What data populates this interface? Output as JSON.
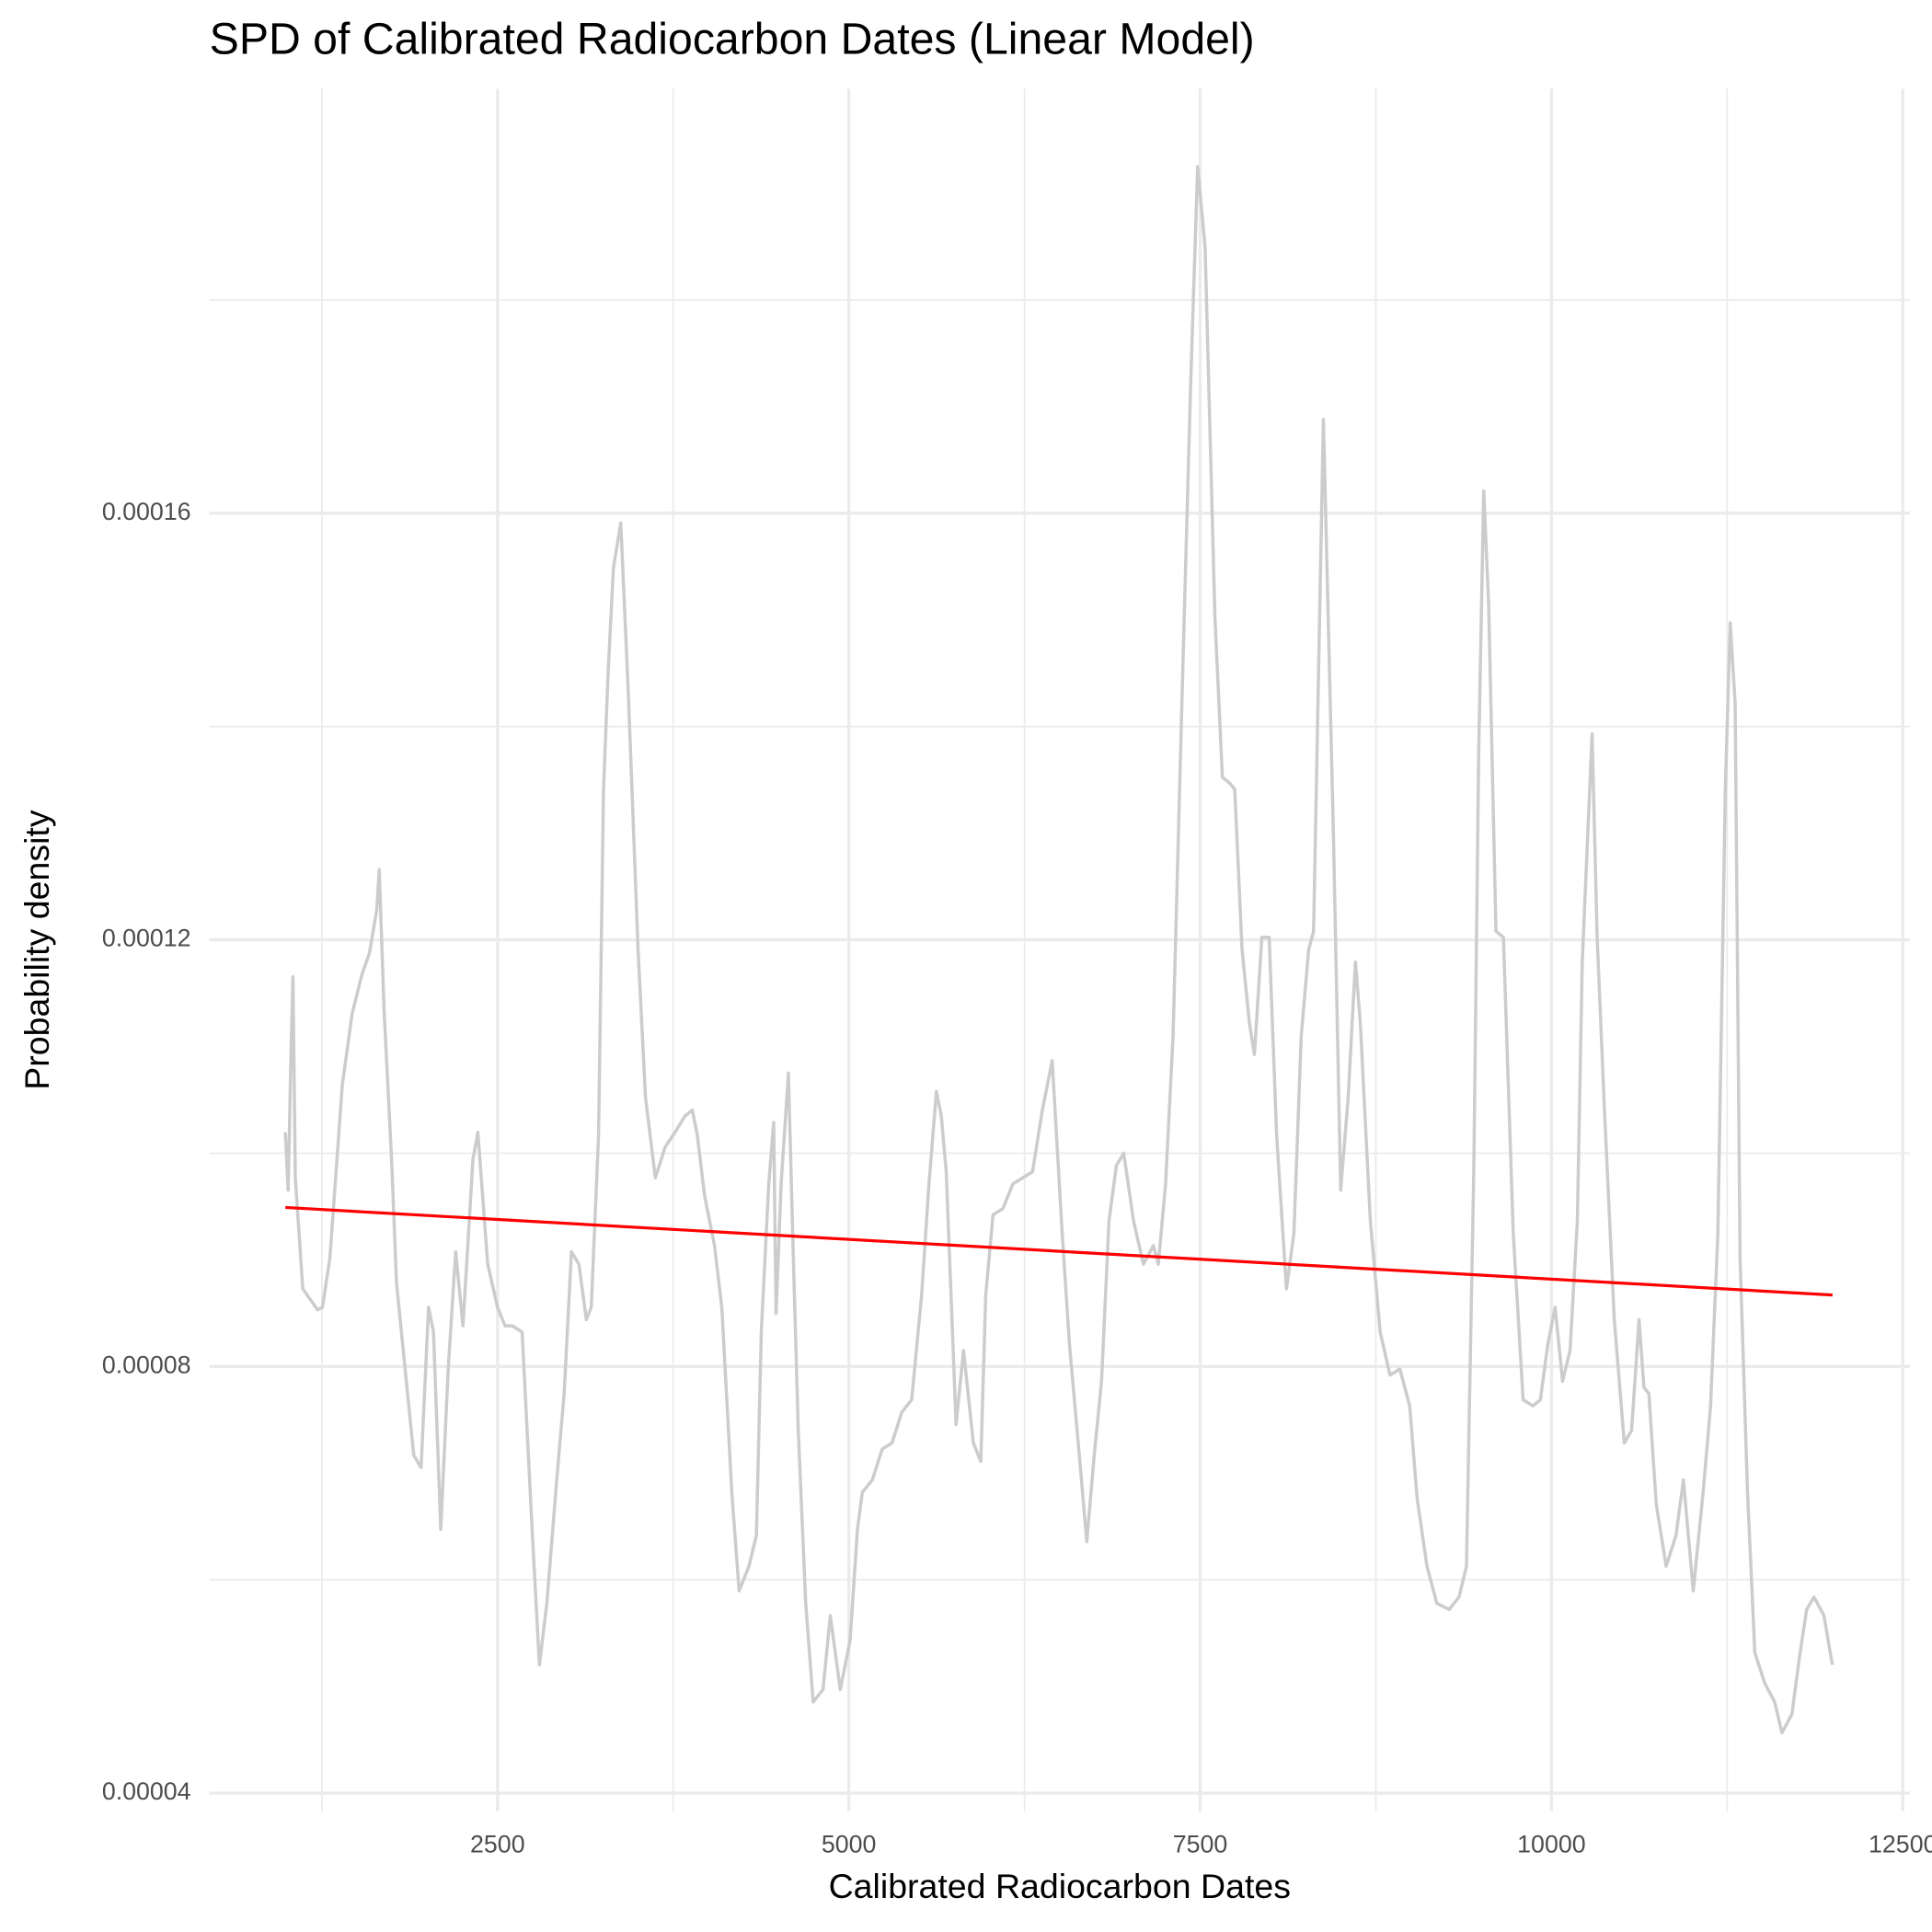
{
  "chart_data": {
    "type": "line",
    "title": "SPD of Calibrated Radiocarbon Dates (Linear Model)",
    "x_label": "Calibrated Radiocarbon Dates",
    "y_label": "Probability density",
    "xlim": [
      450,
      12550
    ],
    "ylim": [
      3.83e-05,
      0.0001998
    ],
    "xticks": [
      2500,
      5000,
      7500,
      10000,
      12500
    ],
    "yticks": [
      4e-05,
      8e-05,
      0.00012,
      0.00016
    ],
    "xminor": [
      1250,
      3750,
      6250,
      8750,
      11250
    ],
    "yminor": [
      6e-05,
      0.0001,
      0.00014,
      0.00018
    ],
    "grid": true,
    "series": [
      {
        "color": "#cccccc",
        "x": [
          990,
          1010,
          1030,
          1044,
          1061,
          1114,
          1219,
          1254,
          1307,
          1395,
          1465,
          1535,
          1588,
          1640,
          1658,
          1693,
          1746,
          1781,
          1851,
          1904,
          1956,
          2009,
          2044,
          2096,
          2149,
          2202,
          2254,
          2325,
          2360,
          2430,
          2500,
          2553,
          2605,
          2675,
          2746,
          2798,
          2851,
          2921,
          2974,
          3026,
          3079,
          3132,
          3167,
          3219,
          3254,
          3289,
          3325,
          3377,
          3430,
          3500,
          3553,
          3623,
          3693,
          3763,
          3833,
          3886,
          3921,
          3974,
          4044,
          4096,
          4167,
          4219,
          4289,
          4342,
          4377,
          4430,
          4465,
          4482,
          4518,
          4570,
          4605,
          4640,
          4693,
          4746,
          4816,
          4868,
          4939,
          5009,
          5061,
          5096,
          5167,
          5237,
          5307,
          5377,
          5447,
          5518,
          5570,
          5623,
          5658,
          5693,
          5763,
          5816,
          5886,
          5939,
          5974,
          6026,
          6096,
          6167,
          6237,
          6307,
          6377,
          6447,
          6518,
          6570,
          6640,
          6693,
          6746,
          6798,
          6851,
          6904,
          6956,
          7026,
          7096,
          7167,
          7202,
          7254,
          7307,
          7377,
          7430,
          7482,
          7535,
          7605,
          7658,
          7711,
          7746,
          7798,
          7851,
          7886,
          7939,
          7991,
          8044,
          8114,
          8167,
          8219,
          8272,
          8307,
          8377,
          8447,
          8500,
          8553,
          8605,
          8640,
          8711,
          8781,
          8851,
          8921,
          8991,
          9044,
          9114,
          9184,
          9272,
          9342,
          9395,
          9447,
          9482,
          9518,
          9553,
          9605,
          9658,
          9728,
          9798,
          9868,
          9921,
          9974,
          10026,
          10079,
          10132,
          10184,
          10219,
          10289,
          10325,
          10377,
          10447,
          10518,
          10570,
          10623,
          10658,
          10693,
          10746,
          10816,
          10886,
          10939,
          11009,
          11079,
          11132,
          11184,
          11237,
          11272,
          11307,
          11342,
          11395,
          11447,
          11518,
          11588,
          11640,
          11711,
          11763,
          11816,
          11868,
          11939,
          11991,
          12000
        ],
        "values": [
          0.00010196,
          9.653e-05,
          0.00010925,
          0.00011653,
          9.769e-05,
          8.728e-05,
          8.532e-05,
          8.555e-05,
          9.017e-05,
          0.00010636,
          0.00011306,
          0.00011676,
          0.00011873,
          0.00012277,
          0.00012659,
          0.00011329,
          9.942e-05,
          8.786e-05,
          7.861e-05,
          7.167e-05,
          7.052e-05,
          8.555e-05,
          8.323e-05,
          6.474e-05,
          7.977e-05,
          9.075e-05,
          8.381e-05,
          9.942e-05,
          0.00010196,
          8.959e-05,
          8.555e-05,
          8.381e-05,
          8.381e-05,
          8.323e-05,
          6.474e-05,
          5.202e-05,
          5.78e-05,
          6.936e-05,
          7.745e-05,
          9.075e-05,
          8.959e-05,
          8.439e-05,
          8.555e-05,
          0.00010173,
          0.0001341,
          0.00014566,
          0.00015491,
          0.00015908,
          0.00014335,
          0.00011907,
          0.0001052,
          9.769e-05,
          0.00010058,
          0.00010196,
          0.00010347,
          0.00010404,
          0.00010173,
          9.595e-05,
          9.133e-05,
          8.555e-05,
          6.821e-05,
          5.896e-05,
          6.127e-05,
          6.416e-05,
          8.323e-05,
          9.711e-05,
          0.00010289,
          8.497e-05,
          9.711e-05,
          0.00010751,
          9.017e-05,
          7.399e-05,
          5.78e-05,
          4.855e-05,
          4.971e-05,
          5.664e-05,
          4.971e-05,
          5.433e-05,
          6.474e-05,
          6.821e-05,
          6.936e-05,
          7.225e-05,
          7.283e-05,
          7.572e-05,
          7.688e-05,
          8.67e-05,
          9.711e-05,
          0.00010578,
          0.00010347,
          9.826e-05,
          7.456e-05,
          8.15e-05,
          7.283e-05,
          7.11e-05,
          8.67e-05,
          9.422e-05,
          9.48e-05,
          9.711e-05,
          9.769e-05,
          9.826e-05,
          0.00010404,
          0.00010867,
          9.248e-05,
          8.208e-05,
          7.167e-05,
          6.358e-05,
          7.167e-05,
          7.861e-05,
          9.364e-05,
          9.884e-05,
          0.0001,
          9.364e-05,
          8.959e-05,
          9.133e-05,
          8.959e-05,
          9.711e-05,
          0.00011098,
          0.00014566,
          0.0001711,
          0.00019249,
          0.00018497,
          0.00015029,
          0.00013526,
          0.00013468,
          0.0001341,
          0.00011907,
          0.00011214,
          0.00010925,
          0.00012023,
          0.00012023,
          0.00010173,
          8.728e-05,
          9.248e-05,
          0.00011098,
          0.00011907,
          0.00012081,
          0.00016879,
          0.00013064,
          9.653e-05,
          0.0001052,
          0.00011792,
          0.00011214,
          9.364e-05,
          8.323e-05,
          7.919e-05,
          7.977e-05,
          7.63e-05,
          6.763e-05,
          6.127e-05,
          5.78e-05,
          5.722e-05,
          5.838e-05,
          6.127e-05,
          9.826e-05,
          0.00013757,
          0.00016208,
          0.00015144,
          0.00012081,
          0.00012023,
          9.248e-05,
          7.688e-05,
          7.63e-05,
          7.688e-05,
          8.208e-05,
          8.555e-05,
          7.861e-05,
          8.15e-05,
          9.364e-05,
          0.00011792,
          0.00013931,
          0.00012023,
          0.00010404,
          8.439e-05,
          7.283e-05,
          7.399e-05,
          8.439e-05,
          7.803e-05,
          7.745e-05,
          6.705e-05,
          6.127e-05,
          6.416e-05,
          6.936e-05,
          5.896e-05,
          6.821e-05,
          7.63e-05,
          9.248e-05,
          0.0001341,
          0.00014971,
          0.0001422,
          9.017e-05,
          6.821e-05,
          5.318e-05,
          5.029e-05,
          4.855e-05,
          4.566e-05,
          4.74e-05,
          5.26e-05,
          5.722e-05,
          5.838e-05,
          5.664e-05,
          5.26e-05,
          5.202e-05
        ]
      },
      {
        "color": "#ff0000",
        "x": [
          990,
          12000
        ],
        "values": [
          9.491e-05,
          8.67e-05
        ]
      }
    ]
  }
}
